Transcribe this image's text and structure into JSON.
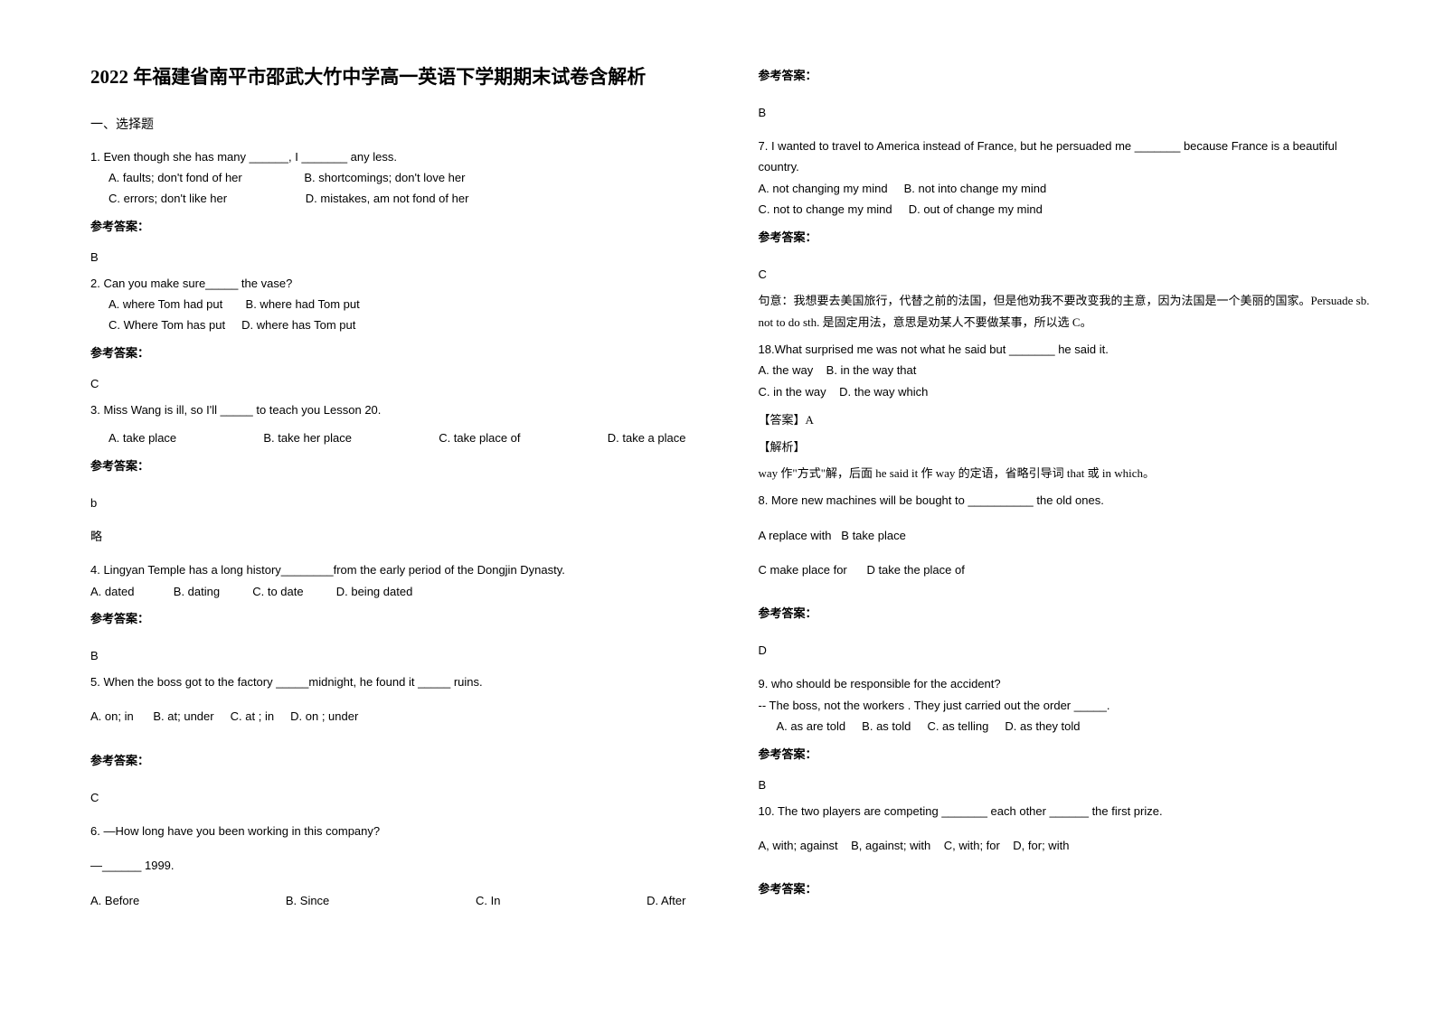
{
  "title": "2022 年福建省南平市邵武大竹中学高一英语下学期期末试卷含解析",
  "section_heading": "一、选择题",
  "answer_label": "参考答案：",
  "left": {
    "q1": {
      "text": "1. Even though she has many ______, I _______ any less.",
      "opt_a": "A. faults; don't fond of her",
      "opt_b": "B. shortcomings; don't love her",
      "opt_c": "C. errors; don't like her",
      "opt_d": "D. mistakes, am not fond of her",
      "answer": "B"
    },
    "q2": {
      "text": "2. Can you make sure_____ the vase?",
      "opt_a": "A. where Tom had put",
      "opt_b": "B. where had Tom put",
      "opt_c": "C. Where Tom has put",
      "opt_d": "D. where has Tom put",
      "answer": "C"
    },
    "q3": {
      "text": "3. Miss Wang is ill, so I'll _____ to teach you Lesson 20.",
      "opt_a": "A. take place",
      "opt_b": "B. take her place",
      "opt_c": "C. take place of",
      "opt_d": "D. take a place",
      "answer": "b",
      "note": "略"
    },
    "q4": {
      "text": "4. Lingyan Temple has a long history________from the early period of the Dongjin Dynasty.",
      "opt_a": "A. dated",
      "opt_b": "B. dating",
      "opt_c": "C. to date",
      "opt_d": "D. being dated",
      "answer": "B"
    },
    "q5": {
      "text": "5. When the boss got to the factory _____midnight, he found it _____ ruins.",
      "opt_a": "A. on; in",
      "opt_b": "B. at; under",
      "opt_c": "C. at ; in",
      "opt_d": "D. on ; under",
      "answer": "C"
    },
    "q6": {
      "text": "6. —How long have you been working in this company?",
      "sub": "—______ 1999.",
      "opt_a": "A. Before",
      "opt_b": "B. Since",
      "opt_c": "C. In",
      "opt_d": "D. After"
    }
  },
  "right": {
    "q6_answer": "B",
    "q7": {
      "text": "7. I wanted to travel to America instead of France, but he persuaded me _______ because France is a beautiful country.",
      "opt_a": "A. not changing my mind",
      "opt_b": "B. not into change my mind",
      "opt_c": "C. not to change my mind",
      "opt_d": "D. out of change my mind",
      "answer": "C",
      "explain1": "句意：我想要去美国旅行，代替之前的法国，但是他劝我不要改变我的主意，因为法国是一个美丽的国家。Persuade sb. not to do sth. 是固定用法，意思是劝某人不要做某事，所以选 C。"
    },
    "q18": {
      "text": "18.What surprised me was not what he said but _______ he said it.",
      "opt_a": "A. the way",
      "opt_b": "B. in the way that",
      "opt_c": "C. in the way",
      "opt_d": "D. the way which",
      "answer_label": "【答案】A",
      "explain_label": "【解析】",
      "explain": "way 作\"方式\"解，后面 he said it 作 way 的定语，省略引导词 that 或 in which。"
    },
    "q8": {
      "text": "8. More new machines will be bought to __________ the old ones.",
      "opt_a": "A replace with",
      "opt_b": "B take place",
      "opt_c": "C make place for",
      "opt_d": "D take the place of",
      "answer": "D"
    },
    "q9": {
      "text": "9. who should be responsible for the accident?",
      "sub": "-- The boss, not the workers . They just carried out the order _____.",
      "opt_a": "A. as are told",
      "opt_b": "B. as told",
      "opt_c": "C. as telling",
      "opt_d": "D. as they told",
      "answer": "B"
    },
    "q10": {
      "text": "10. The two players are competing _______ each other ______ the first prize.",
      "opt_a": "A, with; against",
      "opt_b": "B, against; with",
      "opt_c": "C, with; for",
      "opt_d": "D, for; with"
    }
  }
}
